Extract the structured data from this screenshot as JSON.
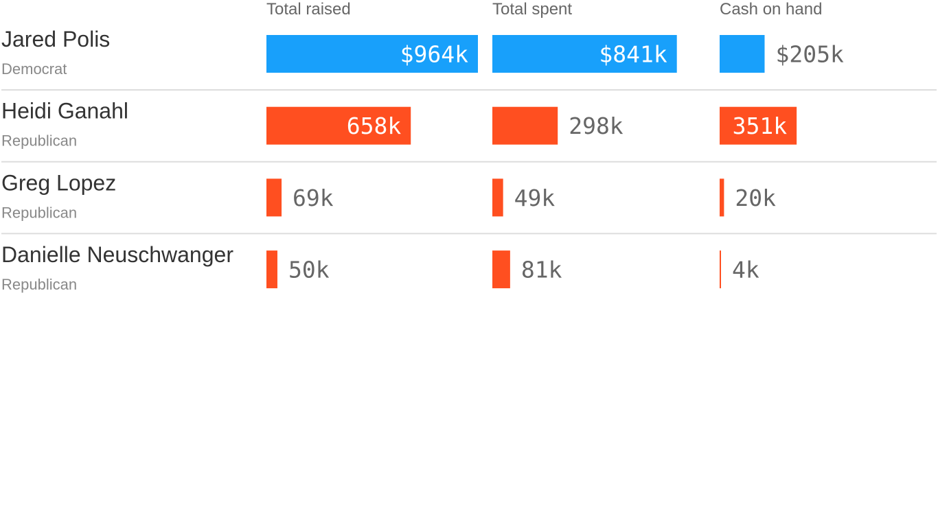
{
  "chart_data": {
    "type": "bar",
    "columns": [
      {
        "label": "Total raised"
      },
      {
        "label": "Total spent"
      },
      {
        "label": "Cash on hand"
      }
    ],
    "colors": {
      "Democrat": "#18a0fb",
      "Republican": "#ff4f20"
    },
    "units": "thousands of dollars",
    "rows": [
      {
        "name": "Jared Polis",
        "party": "Democrat",
        "values": [
          964,
          841,
          205
        ],
        "labels": [
          "$964k",
          "$841k",
          "$205k"
        ]
      },
      {
        "name": "Heidi Ganahl",
        "party": "Republican",
        "values": [
          658,
          298,
          351
        ],
        "labels": [
          "658k",
          "298k",
          "351k"
        ]
      },
      {
        "name": "Greg Lopez",
        "party": "Republican",
        "values": [
          69,
          49,
          20
        ],
        "labels": [
          "69k",
          "49k",
          "20k"
        ]
      },
      {
        "name": "Danielle Neuschwanger",
        "party": "Republican",
        "values": [
          50,
          81,
          4
        ],
        "labels": [
          "50k",
          "81k",
          "4k"
        ]
      }
    ]
  }
}
